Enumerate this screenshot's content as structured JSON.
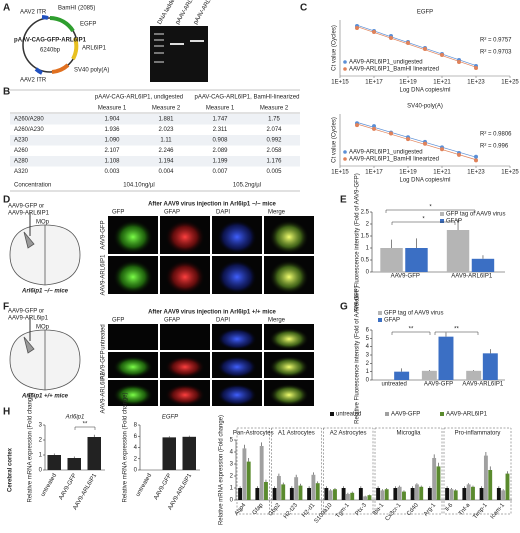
{
  "panels": {
    "A": {
      "label": "A",
      "map": {
        "itr1": "AAV2 ITR",
        "bamhi": "BamHI (2085)",
        "egfp": "EGFP",
        "name": "pAAV-CAG-GFP-ARL6IP1",
        "size": "6240bp",
        "arl": "ARL6IP1",
        "sv40": "SV40 poly(A)",
        "itr2": "AAV2 ITR"
      },
      "gel": [
        "DNA ladder",
        "pAAV-ARL6IP1 undigested",
        "pAAV-ARL6IP1 (BamHI linearized)"
      ]
    },
    "B": {
      "label": "B",
      "header": [
        "pAAV-CAG-ARL6IP1, undigested",
        "pAAV-CAG-ARL6IP1, BamHI-linearized"
      ],
      "subheader": [
        "Measure 1",
        "Measure 2",
        "Measure 1",
        "Measure 2"
      ],
      "rows": [
        [
          "A260/A280",
          "1.904",
          "1.881",
          "1.747",
          "1.75"
        ],
        [
          "A260/A230",
          "1.936",
          "2.023",
          "2.311",
          "2.074"
        ],
        [
          "A230",
          "1.090",
          "1.11",
          "0.908",
          "0.992"
        ],
        [
          "A260",
          "2.107",
          "2.246",
          "2.089",
          "2.058"
        ],
        [
          "A280",
          "1.108",
          "1.194",
          "1.199",
          "1.176"
        ],
        [
          "A320",
          "0.003",
          "0.004",
          "0.007",
          "0.005"
        ]
      ],
      "concentration": [
        "Concentration",
        "104.10ng/µl",
        "105.2ng/µl"
      ]
    },
    "C": {
      "label": "C"
    },
    "D": {
      "label": "D",
      "inject": [
        "AAV9-GFP or",
        "AAV9-ARL6IP1"
      ],
      "region": "MOp",
      "mice": "Arl6ip1 −/− mice",
      "title": "After AAV9 virus injection in Arl6ip1 −/− mice",
      "columns": [
        "GFP",
        "GFAP",
        "DAPI",
        "Merge"
      ],
      "rows": [
        "AAV9-GFP",
        "AAV9-ARL6IP1"
      ]
    },
    "E": {
      "label": "E"
    },
    "F": {
      "label": "F",
      "inject": [
        "AAV9-GFP or",
        "AAV9-ARL6ip1"
      ],
      "region": "MOp",
      "mice": "Arl6ip1 +/+ mice",
      "title": "After AAV9 virus injection in Arl6ip1 +/+ mice",
      "columns": [
        "GFP",
        "GFAP",
        "DAPI",
        "Merge"
      ],
      "rows": [
        "untreated",
        "AAV9-GFP",
        "AAV9-ARL6IP1"
      ]
    },
    "G": {
      "label": "G"
    },
    "H": {
      "label": "H",
      "region": "Cerebral cortex"
    }
  },
  "chart_data": [
    {
      "type": "scatter",
      "title": "EGFP",
      "xlabel": "Log DNA copies/ml",
      "ylabel": "Ct value (Cycles)",
      "log_x": true,
      "xlim": [
        1000000000000000.0,
        1e+25
      ],
      "xticks": [
        {
          "value": 1000000000000000.0,
          "label": "1E+15"
        },
        {
          "value": 1e+17,
          "label": "1E+17"
        },
        {
          "value": 1e+19,
          "label": "1E+19"
        },
        {
          "value": 1e+21,
          "label": "1E+21"
        },
        {
          "value": 1e+23,
          "label": "1E+23"
        },
        {
          "value": 1e+25,
          "label": "1E+25"
        }
      ],
      "ylim": [
        8,
        36
      ],
      "series": [
        {
          "name": "AAV9-ARL6IP1_undigested",
          "color": "#5b8fd6",
          "x": [
            1e+16,
            1e+17,
            1e+18,
            1e+19,
            1e+20,
            1e+21,
            1e+22,
            1e+23
          ],
          "values": [
            33,
            30.5,
            28,
            25,
            22,
            19,
            16,
            13
          ]
        },
        {
          "name": "AAV9-ARL6IP1_BamHI linearized",
          "color": "#e0825a",
          "x": [
            1e+16,
            1e+17,
            1e+18,
            1e+19,
            1e+20,
            1e+21,
            1e+22,
            1e+23
          ],
          "values": [
            32,
            30,
            27,
            24.5,
            21.5,
            18.5,
            15,
            12
          ]
        }
      ],
      "annotations": [
        "R² = 0.9757",
        "R² = 0.9703"
      ]
    },
    {
      "type": "scatter",
      "title": "SV40-poly(A)",
      "xlabel": "Log DNA copies/ml",
      "ylabel": "Ct value (Cycles)",
      "log_x": true,
      "xlim": [
        1000000000000000.0,
        1e+25
      ],
      "xticks": [
        {
          "value": 1000000000000000.0,
          "label": "1E+15"
        },
        {
          "value": 1e+17,
          "label": "1E+17"
        },
        {
          "value": 1e+19,
          "label": "1E+19"
        },
        {
          "value": 1e+21,
          "label": "1E+21"
        },
        {
          "value": 1e+23,
          "label": "1E+23"
        },
        {
          "value": 1e+25,
          "label": "1E+25"
        }
      ],
      "ylim": [
        8,
        36
      ],
      "series": [
        {
          "name": "AAV9-ARL6IP1_undigested",
          "color": "#5b8fd6",
          "x": [
            1e+16,
            1e+17,
            1e+18,
            1e+19,
            1e+20,
            1e+21,
            1e+22,
            1e+23
          ],
          "values": [
            31,
            29.5,
            26,
            23.5,
            21,
            18,
            15,
            13
          ]
        },
        {
          "name": "AAV9-ARL6IP1_BamHI linearized",
          "color": "#e0825a",
          "x": [
            1e+16,
            1e+17,
            1e+18,
            1e+19,
            1e+20,
            1e+21,
            1e+22,
            1e+23
          ],
          "values": [
            30,
            28,
            25.5,
            22.5,
            20,
            17,
            14,
            11
          ]
        }
      ],
      "annotations": [
        "R² = 0.9806",
        "R² = 0.996"
      ]
    },
    {
      "type": "bar",
      "ylabel": "Relative Fluorescence intensity (Fold of AAV9-GFP)",
      "categories": [
        "AAV9-GFP",
        "AAV9-ARL6IP1"
      ],
      "ylim": [
        0,
        2.5
      ],
      "yticks": [
        0,
        0.5,
        1,
        1.5,
        2,
        2.5
      ],
      "series": [
        {
          "name": "GFP tag of AAV9 virus",
          "color": "#b5b5b5",
          "values": [
            1.0,
            1.75
          ],
          "errors": [
            0.35,
            0.45
          ]
        },
        {
          "name": "GFAP",
          "color": "#3b6fc4",
          "values": [
            1.0,
            0.55
          ],
          "errors": [
            0.4,
            0.15
          ]
        }
      ],
      "annotations": [
        "*",
        "*"
      ]
    },
    {
      "type": "bar",
      "ylabel": "Relative Fluorescence intensity (Fold of AAV9-GFP)",
      "categories": [
        "untreated",
        "AAV9-GFP",
        "AAV9-ARL6IP1"
      ],
      "ylim": [
        0,
        6
      ],
      "yticks": [
        0,
        1,
        2,
        3,
        4,
        5,
        6
      ],
      "series": [
        {
          "name": "GFP tag of AAV9 virus",
          "color": "#b5b5b5",
          "values": [
            null,
            1.1,
            1.1
          ],
          "errors": [
            null,
            0.1,
            0.1
          ]
        },
        {
          "name": "GFAP",
          "color": "#3b6fc4",
          "values": [
            1.0,
            5.2,
            3.2
          ],
          "errors": [
            0.4,
            0.5,
            0.5
          ]
        }
      ],
      "annotations": [
        "**",
        "**"
      ]
    },
    {
      "type": "bar",
      "title": "Arl6ip1",
      "ylabel": "Relative mRNA expression (Fold change)",
      "categories": [
        "untreated",
        "AAV9-GFP",
        "AAV9-ARL6IP1"
      ],
      "ylim": [
        0,
        3
      ],
      "yticks": [
        0,
        1,
        2,
        3
      ],
      "series": [
        {
          "color": "#222222",
          "values": [
            1,
            0.8,
            2.2
          ],
          "errors": [
            0.1,
            0.1,
            0.15
          ]
        }
      ],
      "annotations": [
        "**"
      ]
    },
    {
      "type": "bar",
      "title": "EGFP",
      "ylabel": "Relative mRNA expression (Fold change)",
      "categories": [
        "untreated",
        "AAV9-GFP",
        "AAV9-ARL6IP1"
      ],
      "ylim": [
        0,
        8
      ],
      "yticks": [
        0,
        2,
        4,
        6,
        8
      ],
      "series": [
        {
          "color": "#222222",
          "values": [
            0,
            5.8,
            5.9
          ],
          "errors": [
            0,
            0.2,
            0.2
          ]
        }
      ]
    },
    {
      "type": "bar",
      "ylabel": "Relative mRNA expression (Fold change)",
      "ylim": [
        0,
        5
      ],
      "yticks": [
        0,
        1,
        2,
        3,
        4,
        5
      ],
      "groups": [
        {
          "label": "Pan-Astrocytes",
          "categories": [
            "Aqp4",
            "Gfap"
          ]
        },
        {
          "label": "A1 Astrocytes",
          "categories": [
            "Gbp2",
            "H2-t23",
            "H2-d1"
          ]
        },
        {
          "label": "A2 Astrocytes",
          "categories": [
            "S100a10",
            "Tgm-1",
            "Ptx-3"
          ]
        },
        {
          "label": "Microglia",
          "categories": [
            "Iba-1",
            "Cx3cr-1",
            "Cd40",
            "Arg-1"
          ]
        },
        {
          "label": "Pro-inflammatory",
          "categories": [
            "Il-6",
            "Tnf-a",
            "Timp-1",
            "Icam-1"
          ]
        }
      ],
      "series": [
        {
          "name": "untreated",
          "color": "#111111",
          "values": [
            1,
            1,
            1,
            1,
            1,
            1,
            1,
            1,
            1,
            1,
            1,
            1,
            1,
            1,
            1,
            1
          ],
          "errors": [
            0.15,
            0.15,
            0.15,
            0.15,
            0.15,
            0.15,
            0.15,
            0.15,
            0.15,
            0.15,
            0.15,
            0.15,
            0.15,
            0.15,
            0.15,
            0.15
          ]
        },
        {
          "name": "AAV9-GFP",
          "color": "#a0a0a0",
          "values": [
            4.3,
            4.5,
            2,
            1.9,
            2.1,
            0.8,
            0.5,
            0.3,
            0.8,
            1.1,
            1.3,
            3.5,
            0.9,
            1.3,
            3.7,
            0.8
          ],
          "errors": [
            0.3,
            0.3,
            0.2,
            0.2,
            0.2,
            0.1,
            0.1,
            0.05,
            0.1,
            0.1,
            0.1,
            0.3,
            0.1,
            0.1,
            0.3,
            0.1
          ]
        },
        {
          "name": "AAV9-ARL6IP1",
          "color": "#5a8a2e",
          "values": [
            3.2,
            1.5,
            1.3,
            1.2,
            1.4,
            0.9,
            0.6,
            0.4,
            0.9,
            0.7,
            1.1,
            2.8,
            0.8,
            1.1,
            2.5,
            2.2
          ],
          "errors": [
            0.3,
            0.2,
            0.15,
            0.15,
            0.15,
            0.1,
            0.1,
            0.05,
            0.1,
            0.1,
            0.1,
            0.3,
            0.1,
            0.1,
            0.3,
            0.2
          ]
        }
      ]
    }
  ]
}
